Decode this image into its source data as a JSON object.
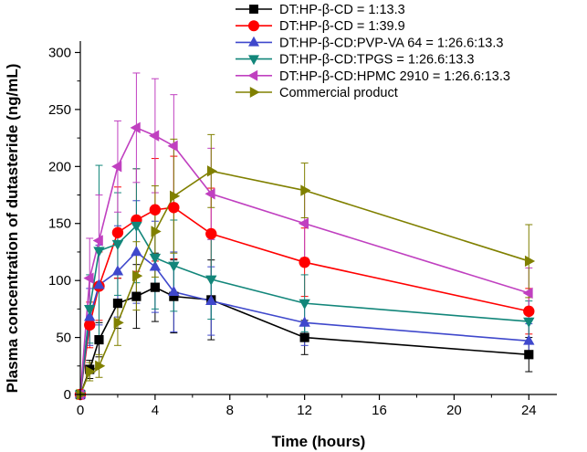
{
  "chart_data": {
    "type": "line",
    "title": "",
    "xlabel": "Time (hours)",
    "ylabel": "Plasma concentration of dutasteride (ng/mL)",
    "xlim": [
      0,
      25.5
    ],
    "ylim": [
      0,
      310
    ],
    "xticks": [
      0,
      4,
      8,
      12,
      16,
      20,
      24
    ],
    "yticks": [
      0,
      50,
      100,
      150,
      200,
      250,
      300
    ],
    "grid": false,
    "legend_position": "top-right",
    "series": [
      {
        "name": "DT:HP-β-CD = 1:13.3",
        "color": "#000000",
        "marker": "square",
        "x": [
          0,
          0.5,
          1,
          2,
          3,
          4,
          5,
          7,
          12,
          24
        ],
        "y": [
          0,
          22,
          48,
          80,
          86,
          94,
          86,
          83,
          50,
          35
        ],
        "err": [
          0,
          8,
          15,
          22,
          28,
          30,
          32,
          35,
          15,
          15
        ]
      },
      {
        "name": "DT:HP-β-CD = 1:39.9",
        "color": "#ff0000",
        "marker": "circle",
        "x": [
          0,
          0.5,
          1,
          2,
          3,
          4,
          5,
          7,
          12,
          24
        ],
        "y": [
          0,
          61,
          95,
          142,
          153,
          162,
          164,
          141,
          116,
          73
        ],
        "err": [
          0,
          20,
          30,
          40,
          45,
          45,
          45,
          40,
          30,
          20
        ]
      },
      {
        "name": "DT:HP-β-CD:PVP-VA 64 = 1:26.6:13.3",
        "color": "#3f48cc",
        "marker": "triangle-up",
        "x": [
          0,
          0.5,
          1,
          2,
          3,
          4,
          5,
          7,
          12,
          24
        ],
        "y": [
          0,
          68,
          96,
          108,
          125,
          112,
          90,
          82,
          63,
          47
        ],
        "err": [
          0,
          25,
          35,
          40,
          45,
          40,
          35,
          30,
          20,
          15
        ]
      },
      {
        "name": "DT:HP-β-CD:TPGS = 1:26.6:13.3",
        "color": "#12867a",
        "marker": "triangle-down",
        "x": [
          0,
          0.5,
          1,
          2,
          3,
          4,
          5,
          7,
          12,
          24
        ],
        "y": [
          0,
          75,
          126,
          132,
          148,
          120,
          113,
          101,
          80,
          64
        ],
        "err": [
          0,
          30,
          75,
          45,
          50,
          45,
          40,
          35,
          25,
          18
        ]
      },
      {
        "name": "DT:HP-β-CD:HPMC 2910 = 1:26.6:13.3",
        "color": "#c040c0",
        "marker": "triangle-left",
        "x": [
          0,
          0.5,
          1,
          2,
          3,
          4,
          5,
          7,
          12,
          24
        ],
        "y": [
          0,
          102,
          135,
          200,
          234,
          227,
          218,
          176,
          150,
          89
        ],
        "err": [
          0,
          35,
          40,
          40,
          48,
          50,
          45,
          40,
          30,
          22
        ]
      },
      {
        "name": "Commercial product",
        "color": "#808000",
        "marker": "triangle-right",
        "x": [
          0,
          0.5,
          1,
          2,
          3,
          4,
          5,
          7,
          12,
          24
        ],
        "y": [
          0,
          20,
          25,
          63,
          104,
          143,
          174,
          196,
          179,
          117
        ],
        "err": [
          0,
          8,
          10,
          20,
          30,
          40,
          50,
          32,
          24,
          32
        ]
      }
    ]
  }
}
